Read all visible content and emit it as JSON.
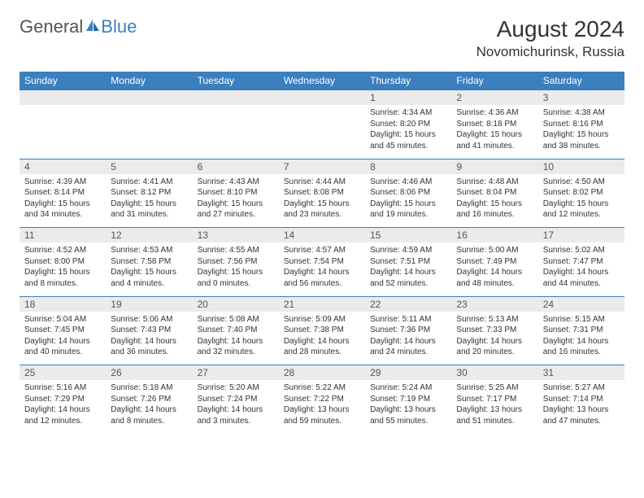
{
  "brand": {
    "part1": "General",
    "part2": "Blue"
  },
  "title": "August 2024",
  "location": "Novomichurinsk, Russia",
  "colors": {
    "header_bg": "#3b7fbf",
    "header_text": "#ffffff",
    "daynum_bg": "#ebebeb",
    "border": "#3b7fbf",
    "body_text": "#333333"
  },
  "dow": [
    "Sunday",
    "Monday",
    "Tuesday",
    "Wednesday",
    "Thursday",
    "Friday",
    "Saturday"
  ],
  "weeks": [
    {
      "nums": [
        "",
        "",
        "",
        "",
        "1",
        "2",
        "3"
      ],
      "cells": [
        null,
        null,
        null,
        null,
        {
          "sr": "Sunrise: 4:34 AM",
          "ss": "Sunset: 8:20 PM",
          "d1": "Daylight: 15 hours",
          "d2": "and 45 minutes."
        },
        {
          "sr": "Sunrise: 4:36 AM",
          "ss": "Sunset: 8:18 PM",
          "d1": "Daylight: 15 hours",
          "d2": "and 41 minutes."
        },
        {
          "sr": "Sunrise: 4:38 AM",
          "ss": "Sunset: 8:16 PM",
          "d1": "Daylight: 15 hours",
          "d2": "and 38 minutes."
        }
      ]
    },
    {
      "nums": [
        "4",
        "5",
        "6",
        "7",
        "8",
        "9",
        "10"
      ],
      "cells": [
        {
          "sr": "Sunrise: 4:39 AM",
          "ss": "Sunset: 8:14 PM",
          "d1": "Daylight: 15 hours",
          "d2": "and 34 minutes."
        },
        {
          "sr": "Sunrise: 4:41 AM",
          "ss": "Sunset: 8:12 PM",
          "d1": "Daylight: 15 hours",
          "d2": "and 31 minutes."
        },
        {
          "sr": "Sunrise: 4:43 AM",
          "ss": "Sunset: 8:10 PM",
          "d1": "Daylight: 15 hours",
          "d2": "and 27 minutes."
        },
        {
          "sr": "Sunrise: 4:44 AM",
          "ss": "Sunset: 8:08 PM",
          "d1": "Daylight: 15 hours",
          "d2": "and 23 minutes."
        },
        {
          "sr": "Sunrise: 4:46 AM",
          "ss": "Sunset: 8:06 PM",
          "d1": "Daylight: 15 hours",
          "d2": "and 19 minutes."
        },
        {
          "sr": "Sunrise: 4:48 AM",
          "ss": "Sunset: 8:04 PM",
          "d1": "Daylight: 15 hours",
          "d2": "and 16 minutes."
        },
        {
          "sr": "Sunrise: 4:50 AM",
          "ss": "Sunset: 8:02 PM",
          "d1": "Daylight: 15 hours",
          "d2": "and 12 minutes."
        }
      ]
    },
    {
      "nums": [
        "11",
        "12",
        "13",
        "14",
        "15",
        "16",
        "17"
      ],
      "cells": [
        {
          "sr": "Sunrise: 4:52 AM",
          "ss": "Sunset: 8:00 PM",
          "d1": "Daylight: 15 hours",
          "d2": "and 8 minutes."
        },
        {
          "sr": "Sunrise: 4:53 AM",
          "ss": "Sunset: 7:58 PM",
          "d1": "Daylight: 15 hours",
          "d2": "and 4 minutes."
        },
        {
          "sr": "Sunrise: 4:55 AM",
          "ss": "Sunset: 7:56 PM",
          "d1": "Daylight: 15 hours",
          "d2": "and 0 minutes."
        },
        {
          "sr": "Sunrise: 4:57 AM",
          "ss": "Sunset: 7:54 PM",
          "d1": "Daylight: 14 hours",
          "d2": "and 56 minutes."
        },
        {
          "sr": "Sunrise: 4:59 AM",
          "ss": "Sunset: 7:51 PM",
          "d1": "Daylight: 14 hours",
          "d2": "and 52 minutes."
        },
        {
          "sr": "Sunrise: 5:00 AM",
          "ss": "Sunset: 7:49 PM",
          "d1": "Daylight: 14 hours",
          "d2": "and 48 minutes."
        },
        {
          "sr": "Sunrise: 5:02 AM",
          "ss": "Sunset: 7:47 PM",
          "d1": "Daylight: 14 hours",
          "d2": "and 44 minutes."
        }
      ]
    },
    {
      "nums": [
        "18",
        "19",
        "20",
        "21",
        "22",
        "23",
        "24"
      ],
      "cells": [
        {
          "sr": "Sunrise: 5:04 AM",
          "ss": "Sunset: 7:45 PM",
          "d1": "Daylight: 14 hours",
          "d2": "and 40 minutes."
        },
        {
          "sr": "Sunrise: 5:06 AM",
          "ss": "Sunset: 7:43 PM",
          "d1": "Daylight: 14 hours",
          "d2": "and 36 minutes."
        },
        {
          "sr": "Sunrise: 5:08 AM",
          "ss": "Sunset: 7:40 PM",
          "d1": "Daylight: 14 hours",
          "d2": "and 32 minutes."
        },
        {
          "sr": "Sunrise: 5:09 AM",
          "ss": "Sunset: 7:38 PM",
          "d1": "Daylight: 14 hours",
          "d2": "and 28 minutes."
        },
        {
          "sr": "Sunrise: 5:11 AM",
          "ss": "Sunset: 7:36 PM",
          "d1": "Daylight: 14 hours",
          "d2": "and 24 minutes."
        },
        {
          "sr": "Sunrise: 5:13 AM",
          "ss": "Sunset: 7:33 PM",
          "d1": "Daylight: 14 hours",
          "d2": "and 20 minutes."
        },
        {
          "sr": "Sunrise: 5:15 AM",
          "ss": "Sunset: 7:31 PM",
          "d1": "Daylight: 14 hours",
          "d2": "and 16 minutes."
        }
      ]
    },
    {
      "nums": [
        "25",
        "26",
        "27",
        "28",
        "29",
        "30",
        "31"
      ],
      "cells": [
        {
          "sr": "Sunrise: 5:16 AM",
          "ss": "Sunset: 7:29 PM",
          "d1": "Daylight: 14 hours",
          "d2": "and 12 minutes."
        },
        {
          "sr": "Sunrise: 5:18 AM",
          "ss": "Sunset: 7:26 PM",
          "d1": "Daylight: 14 hours",
          "d2": "and 8 minutes."
        },
        {
          "sr": "Sunrise: 5:20 AM",
          "ss": "Sunset: 7:24 PM",
          "d1": "Daylight: 14 hours",
          "d2": "and 3 minutes."
        },
        {
          "sr": "Sunrise: 5:22 AM",
          "ss": "Sunset: 7:22 PM",
          "d1": "Daylight: 13 hours",
          "d2": "and 59 minutes."
        },
        {
          "sr": "Sunrise: 5:24 AM",
          "ss": "Sunset: 7:19 PM",
          "d1": "Daylight: 13 hours",
          "d2": "and 55 minutes."
        },
        {
          "sr": "Sunrise: 5:25 AM",
          "ss": "Sunset: 7:17 PM",
          "d1": "Daylight: 13 hours",
          "d2": "and 51 minutes."
        },
        {
          "sr": "Sunrise: 5:27 AM",
          "ss": "Sunset: 7:14 PM",
          "d1": "Daylight: 13 hours",
          "d2": "and 47 minutes."
        }
      ]
    }
  ]
}
